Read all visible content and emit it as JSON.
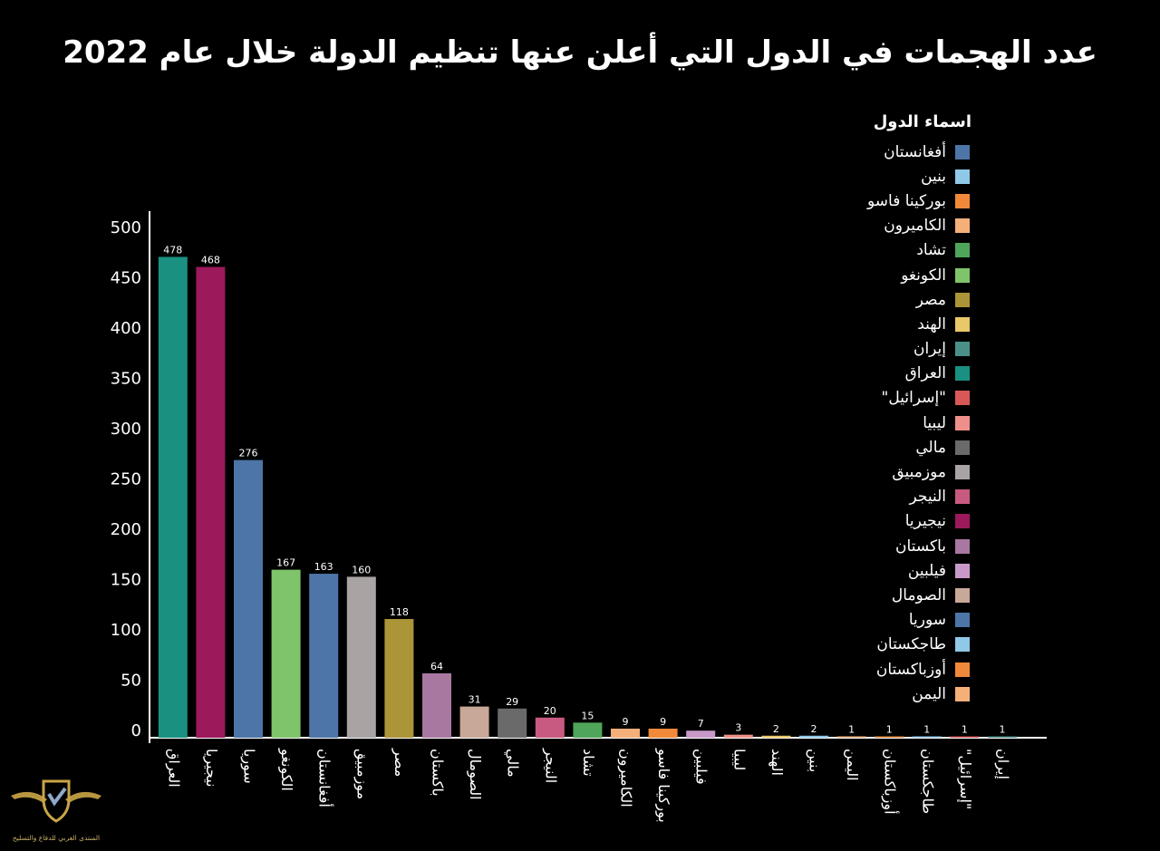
{
  "chart_data": {
    "type": "bar",
    "title": "عدد الهجمات في الدول التي أعلن عنها تنظيم الدولة خلال عام 2022",
    "ylim": [
      0,
      500
    ],
    "yticks": [
      0,
      50,
      100,
      150,
      200,
      250,
      300,
      350,
      400,
      450,
      500
    ],
    "grid": false,
    "legend_title": "اسماء الدول",
    "legend_position": "right",
    "categories": [
      "العراق",
      "نيجيريا",
      "سوريا",
      "الكونغو",
      "أفغانستان",
      "موزمبيق",
      "مصر",
      "باكستان",
      "الصومال",
      "مالي",
      "النيجر",
      "تشاد",
      "الكاميرون",
      "بوركينا فاسو",
      "فيلبين",
      "ليبيا",
      "الهند",
      "بنين",
      "اليمن",
      "أوزباكستان",
      "طاجكستان",
      "\"إسرائيل\"",
      "إيران"
    ],
    "values": [
      478,
      468,
      276,
      167,
      163,
      160,
      118,
      64,
      31,
      29,
      20,
      15,
      9,
      9,
      7,
      3,
      2,
      2,
      1,
      1,
      1,
      1,
      1
    ],
    "bar_colors": [
      "#1a9080",
      "#9c1a5b",
      "#4d75a8",
      "#7fc36a",
      "#4d75a8",
      "#a9a3a3",
      "#ac9438",
      "#a878a0",
      "#c8a898",
      "#6a6a6a",
      "#c85a82",
      "#4fa55a",
      "#f5b07a",
      "#f08a3a",
      "#c899c8",
      "#ef8f8a",
      "#e8c868",
      "#90c8e8",
      "#f5b07a",
      "#f08a3a",
      "#90c8e8",
      "#d85858",
      "#4a9088"
    ],
    "legend": [
      {
        "label": "أفغانستان",
        "color": "#4d75a8"
      },
      {
        "label": "بنين",
        "color": "#90c8e8"
      },
      {
        "label": "بوركينا فاسو",
        "color": "#f08a3a"
      },
      {
        "label": "الكاميرون",
        "color": "#f5b07a"
      },
      {
        "label": "تشاد",
        "color": "#4fa55a"
      },
      {
        "label": "الكونغو",
        "color": "#7fc36a"
      },
      {
        "label": "مصر",
        "color": "#ac9438"
      },
      {
        "label": "الهند",
        "color": "#e8c868"
      },
      {
        "label": "إيران",
        "color": "#4a9088"
      },
      {
        "label": "العراق",
        "color": "#1a9080"
      },
      {
        "label": "\"إسرائيل\"",
        "color": "#d85858"
      },
      {
        "label": "ليبيا",
        "color": "#ef8f8a"
      },
      {
        "label": "مالي",
        "color": "#6a6a6a"
      },
      {
        "label": "موزمبيق",
        "color": "#a9a3a3"
      },
      {
        "label": "النيجر",
        "color": "#c85a82"
      },
      {
        "label": "نيجيريا",
        "color": "#9c1a5b"
      },
      {
        "label": "باكستان",
        "color": "#a878a0"
      },
      {
        "label": "فيلبين",
        "color": "#c899c8"
      },
      {
        "label": "الصومال",
        "color": "#c8a898"
      },
      {
        "label": "سوريا",
        "color": "#4d75a8"
      },
      {
        "label": "طاجكستان",
        "color": "#90c8e8"
      },
      {
        "label": "أوزباكستان",
        "color": "#f08a3a"
      },
      {
        "label": "اليمن",
        "color": "#f5b07a"
      }
    ]
  },
  "watermark": {
    "text": "المنتدى العربي للدفاع والتسليح",
    "icon": "shield-eagle-icon"
  }
}
